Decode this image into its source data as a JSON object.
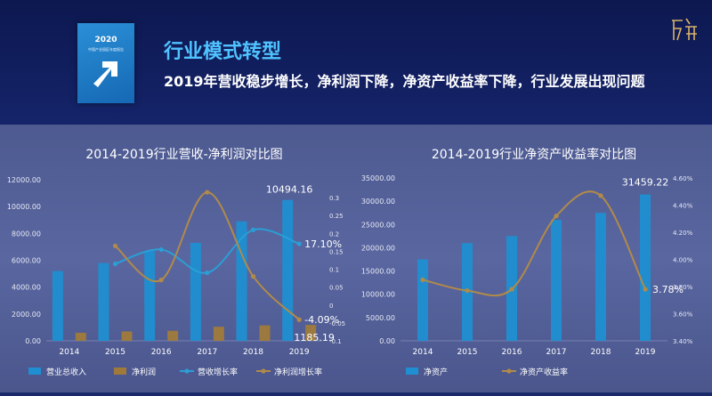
{
  "header": {
    "title": "行业模式转型",
    "subtitle": "2019年营收稳步增长，净利润下降，净资产收益率下降，行业发展出现问题",
    "cover": {
      "year": "2020",
      "subtitle": "中国产业园区年度报告"
    },
    "logo_icon": "brand-logo-icon"
  },
  "colors": {
    "bar_blue": "#1f8fd1",
    "bar_gold": "#a07a3a",
    "line_blue": "#2a9fd6",
    "line_gold": "#b08a4a"
  },
  "chart_data": [
    {
      "type": "bar",
      "title": "2014-2019行业营收-净利润对比图",
      "categories": [
        "2014",
        "2015",
        "2016",
        "2017",
        "2018",
        "2019"
      ],
      "ylim": [
        0,
        12000
      ],
      "yticks": [
        "0.00",
        "2000.00",
        "4000.00",
        "6000.00",
        "8000.00",
        "10000.00",
        "12000.00"
      ],
      "y2lim": [
        -0.1,
        0.35
      ],
      "y2ticks": [
        "-0.1",
        "-0.05",
        "0",
        "0.05",
        "0.1",
        "0.15",
        "0.2",
        "0.25",
        "0.3"
      ],
      "series": [
        {
          "name": "营业总收入",
          "kind": "bar",
          "axis": "left",
          "values": [
            5200,
            5800,
            6700,
            7300,
            8900,
            10494.16
          ]
        },
        {
          "name": "净利润",
          "kind": "bar",
          "axis": "left",
          "values": [
            600,
            700,
            750,
            1050,
            1150,
            1185.19
          ]
        },
        {
          "name": "营收增长率",
          "kind": "line",
          "axis": "right",
          "values": [
            null,
            0.115,
            0.155,
            0.09,
            0.21,
            0.171
          ]
        },
        {
          "name": "净利润增长率",
          "kind": "line",
          "axis": "right",
          "values": [
            null,
            0.165,
            0.07,
            0.315,
            0.08,
            -0.0409
          ]
        }
      ],
      "annotations": [
        {
          "text": "10494.16",
          "series": 0,
          "index": 5
        },
        {
          "text": "1185.19",
          "series": 1,
          "index": 5
        },
        {
          "text": "17.10%",
          "series": 2,
          "index": 5
        },
        {
          "text": "-4.09%",
          "series": 3,
          "index": 5
        }
      ],
      "legend_position": "bottom"
    },
    {
      "type": "bar",
      "title": "2014-2019行业净资产收益率对比图",
      "categories": [
        "2014",
        "2015",
        "2016",
        "2017",
        "2018",
        "2019"
      ],
      "ylim": [
        0,
        35000
      ],
      "yticks": [
        "0.00",
        "5000.00",
        "10000.00",
        "15000.00",
        "20000.00",
        "25000.00",
        "30000.00",
        "35000.00"
      ],
      "y2lim": [
        0.034,
        0.046
      ],
      "y2ticks": [
        "3.40%",
        "3.60%",
        "3.80%",
        "4.00%",
        "4.20%",
        "4.40%",
        "4.60%"
      ],
      "series": [
        {
          "name": "净资产",
          "kind": "bar",
          "axis": "left",
          "values": [
            17500,
            21000,
            22500,
            26000,
            27500,
            31459.22
          ]
        },
        {
          "name": "净资产收益率",
          "kind": "line",
          "axis": "right",
          "values": [
            0.0385,
            0.0377,
            0.0378,
            0.0432,
            0.0447,
            0.0378
          ]
        }
      ],
      "annotations": [
        {
          "text": "31459.22",
          "series": 0,
          "index": 5
        },
        {
          "text": "3.78%",
          "series": 1,
          "index": 5
        }
      ],
      "legend_position": "bottom"
    }
  ]
}
